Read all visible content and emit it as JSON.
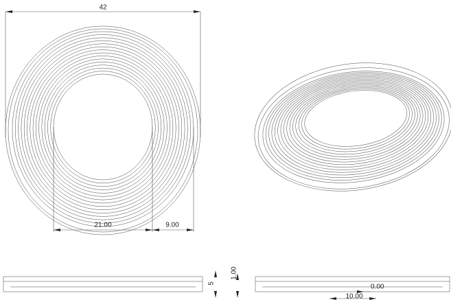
{
  "dimensions": {
    "overall_width": "42",
    "inner_diameter": "21.00",
    "ring_width": "9.00",
    "height": "5",
    "step": "1.00",
    "offset": "0.00",
    "inner_length": "10.00"
  }
}
